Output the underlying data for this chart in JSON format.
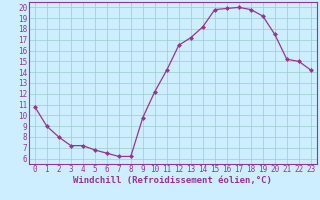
{
  "x": [
    0,
    1,
    2,
    3,
    4,
    5,
    6,
    7,
    8,
    9,
    10,
    11,
    12,
    13,
    14,
    15,
    16,
    17,
    18,
    19,
    20,
    21,
    22,
    23
  ],
  "y": [
    10.8,
    9.0,
    8.0,
    7.2,
    7.2,
    6.8,
    6.5,
    6.2,
    6.2,
    9.8,
    12.2,
    14.2,
    16.5,
    17.2,
    18.2,
    19.8,
    19.9,
    20.0,
    19.8,
    19.2,
    17.5,
    15.2,
    15.0,
    14.2
  ],
  "line_color": "#993399",
  "marker": "D",
  "marker_size": 2.0,
  "line_width": 0.9,
  "bg_color": "#cceeff",
  "grid_color": "#99cccc",
  "xlabel": "Windchill (Refroidissement éolien,°C)",
  "xlabel_color": "#993399",
  "tick_color": "#993399",
  "xlim": [
    -0.5,
    23.5
  ],
  "ylim": [
    5.5,
    20.5
  ],
  "yticks": [
    6,
    7,
    8,
    9,
    10,
    11,
    12,
    13,
    14,
    15,
    16,
    17,
    18,
    19,
    20
  ],
  "xticks": [
    0,
    1,
    2,
    3,
    4,
    5,
    6,
    7,
    8,
    9,
    10,
    11,
    12,
    13,
    14,
    15,
    16,
    17,
    18,
    19,
    20,
    21,
    22,
    23
  ],
  "font_size": 5.5,
  "xlabel_font_size": 6.5,
  "axis_line_color": "#993399"
}
